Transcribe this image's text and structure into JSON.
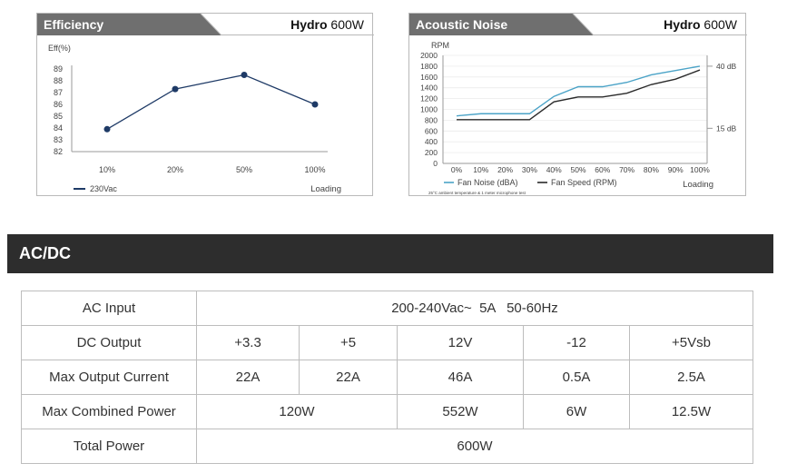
{
  "efficiency_panel": {
    "title": "Efficiency",
    "product_brand": "Hydro",
    "product_watt": "600W"
  },
  "acoustic_panel": {
    "title": "Acoustic Noise",
    "product_brand": "Hydro",
    "product_watt": "600W"
  },
  "section": {
    "title": "AC/DC"
  },
  "colors": {
    "panel_header": "#6f6f6f",
    "marker": "#1e3a66",
    "fan_noise": "#4ba3c7",
    "fan_speed": "#2a2a2a",
    "section_bar": "#2d2d2d"
  },
  "chart_data": [
    {
      "type": "line",
      "title": "Efficiency",
      "ylabel": "Eff(%)",
      "xlabel": "Loading",
      "categories": [
        "10%",
        "20%",
        "50%",
        "100%"
      ],
      "ylim": [
        82,
        89
      ],
      "yticks": [
        "89",
        "88",
        "87",
        "86",
        "85",
        "84",
        "83",
        "82"
      ],
      "series": [
        {
          "name": "230Vac",
          "values": [
            83.9,
            87.3,
            88.5,
            86.0
          ]
        }
      ]
    },
    {
      "type": "line",
      "title": "Acoustic Noise",
      "ylabel": "RPM",
      "xlabel": "Loading",
      "categories": [
        "0%",
        "10%",
        "20%",
        "30%",
        "40%",
        "50%",
        "60%",
        "70%",
        "80%",
        "90%",
        "100%"
      ],
      "ylim": [
        0,
        2000
      ],
      "yticks": [
        "2000",
        "1800",
        "1600",
        "1400",
        "1200",
        "1000",
        "800",
        "600",
        "400",
        "200",
        "0"
      ],
      "right_axis_labels": [
        "40 dB",
        "15 dB"
      ],
      "right_axis_rpm": [
        1800,
        650
      ],
      "footnote": "25°C ambient temperature & 1 meter microphone test",
      "series": [
        {
          "name": "Fan Noise (dBA)",
          "values": [
            880,
            920,
            920,
            920,
            1240,
            1420,
            1420,
            1500,
            1640,
            1720,
            1800
          ]
        },
        {
          "name": "Fan Speed (RPM)",
          "values": [
            810,
            810,
            810,
            810,
            1140,
            1230,
            1230,
            1300,
            1460,
            1560,
            1730
          ]
        }
      ]
    }
  ],
  "table": {
    "ac_input": {
      "label": "AC Input",
      "value": "200-240Vac~  5A   50-60Hz"
    },
    "dc_output": {
      "label": "DC Output",
      "values": [
        "+3.3",
        "+5",
        "12V",
        "-12",
        "+5Vsb"
      ]
    },
    "max_current": {
      "label": "Max Output Current",
      "values": [
        "22A",
        "22A",
        "46A",
        "0.5A",
        "2.5A"
      ]
    },
    "combined": {
      "label": "Max Combined Power",
      "values": [
        "120W",
        "552W",
        "6W",
        "12.5W"
      ]
    },
    "total": {
      "label": "Total Power",
      "value": "600W"
    }
  }
}
